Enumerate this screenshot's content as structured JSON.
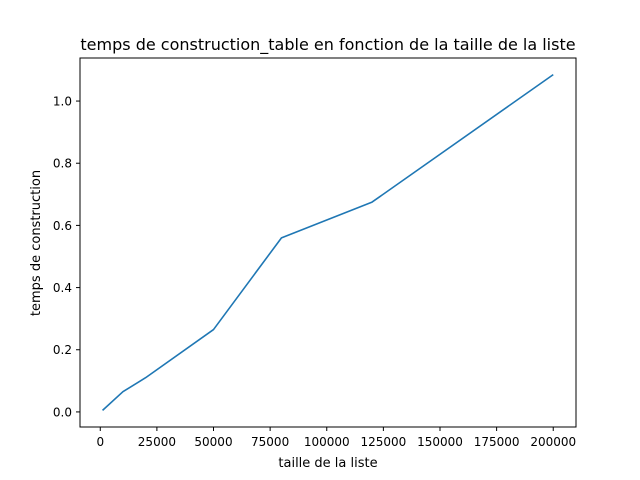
{
  "chart_data": {
    "type": "line",
    "title": "temps de construction_table en fonction de la taille de la liste",
    "xlabel": "taille de la liste",
    "ylabel": "temps de construction",
    "xlim": [
      -8950,
      210050
    ],
    "ylim": [
      -0.0485,
      1.1385
    ],
    "xticks": [
      {
        "value": 0,
        "label": "0"
      },
      {
        "value": 25000,
        "label": "25000"
      },
      {
        "value": 50000,
        "label": "50000"
      },
      {
        "value": 75000,
        "label": "75000"
      },
      {
        "value": 100000,
        "label": "100000"
      },
      {
        "value": 125000,
        "label": "125000"
      },
      {
        "value": 150000,
        "label": "150000"
      },
      {
        "value": 175000,
        "label": "175000"
      },
      {
        "value": 200000,
        "label": "200000"
      }
    ],
    "yticks": [
      {
        "value": 0.0,
        "label": "0.0"
      },
      {
        "value": 0.2,
        "label": "0.2"
      },
      {
        "value": 0.4,
        "label": "0.4"
      },
      {
        "value": 0.6,
        "label": "0.6"
      },
      {
        "value": 0.8,
        "label": "0.8"
      },
      {
        "value": 1.0,
        "label": "1.0"
      }
    ],
    "grid": false,
    "series": [
      {
        "color": "#1f77b4",
        "x": [
          1000,
          10000,
          20000,
          50000,
          80000,
          120000,
          200000
        ],
        "y": [
          0.005,
          0.065,
          0.11,
          0.265,
          0.56,
          0.675,
          1.085
        ]
      }
    ]
  }
}
